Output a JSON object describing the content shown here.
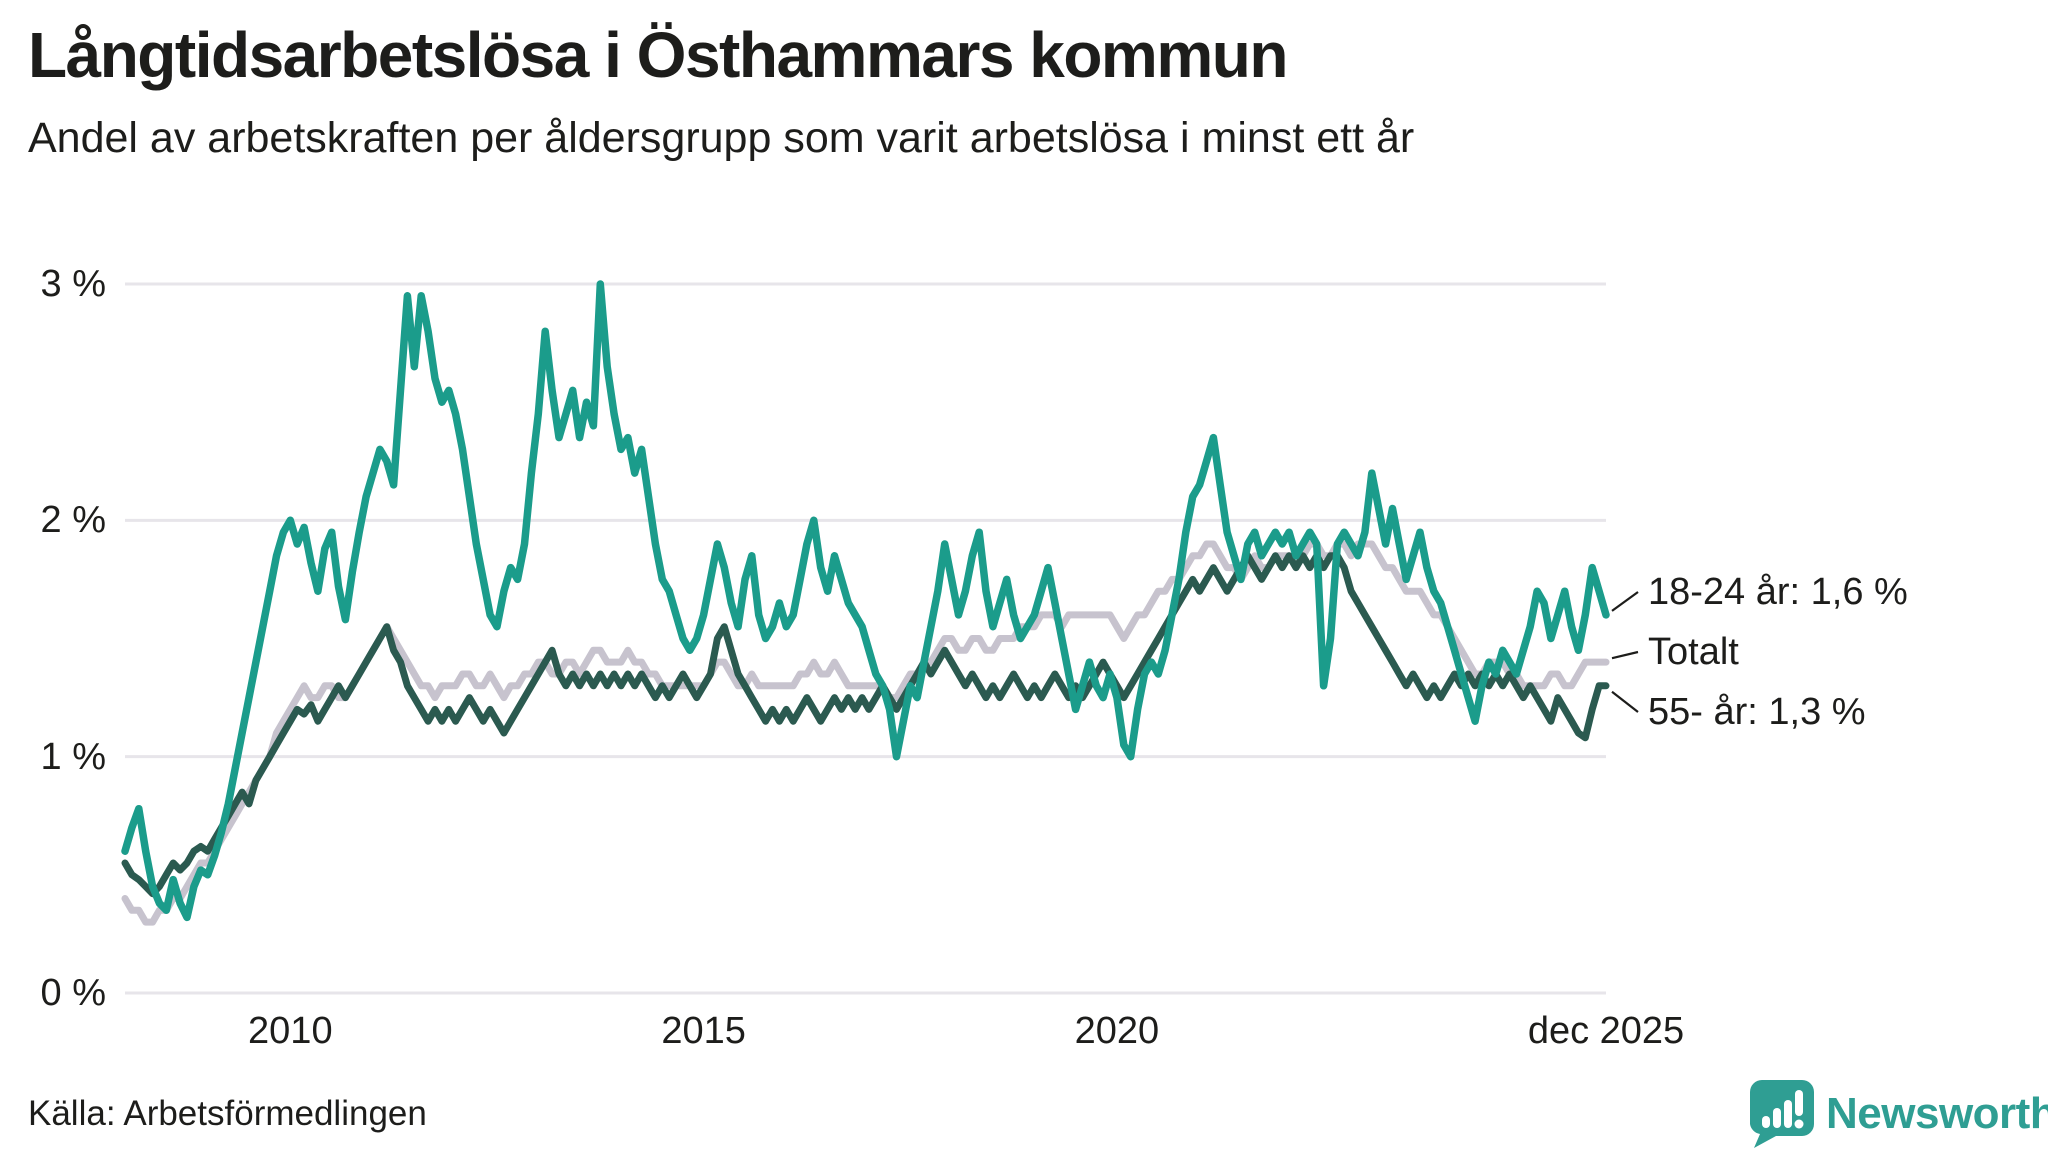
{
  "header": {
    "title": "Långtidsarbetslösa i Östhammars kommun",
    "subtitle": "Andel av arbetskraften per åldersgrupp som varit arbetslösa i minst ett år"
  },
  "footer": {
    "source": "Källa: Arbetsförmedlingen",
    "logo_text": "Newsworthy",
    "logo_color": "#2f9e93"
  },
  "colors": {
    "text": "#1d1d1b",
    "gridline": "#e7e5ea",
    "leader": "#1d1d1b"
  },
  "chart_data": {
    "type": "line",
    "title": "Långtidsarbetslösa i Östhammars kommun",
    "subtitle": "Andel av arbetskraften per åldersgrupp som varit arbetslösa i minst ett år",
    "xlabel": "",
    "ylabel": "",
    "x_range": [
      2008.0,
      2025.9167
    ],
    "ylim": [
      0,
      3
    ],
    "grid": "horizontal",
    "legend_position": "right-of-line-ends",
    "yticks": [
      {
        "value": 0,
        "label": "0 %"
      },
      {
        "value": 1,
        "label": "1 %"
      },
      {
        "value": 2,
        "label": "2 %"
      },
      {
        "value": 3,
        "label": "3 %"
      }
    ],
    "xticks": [
      {
        "value": 2010.0,
        "label": "2010"
      },
      {
        "value": 2015.0,
        "label": "2015"
      },
      {
        "value": 2020.0,
        "label": "2020"
      },
      {
        "value": 2025.9167,
        "label": "dec 2025"
      }
    ],
    "series": [
      {
        "name": "Totalt",
        "end_label": "Totalt",
        "end_value": 1.4,
        "color": "#c7c3ce",
        "start_year": 2008,
        "interval_months": 1,
        "values": [
          0.4,
          0.35,
          0.35,
          0.3,
          0.3,
          0.35,
          0.35,
          0.4,
          0.4,
          0.45,
          0.5,
          0.55,
          0.55,
          0.6,
          0.65,
          0.7,
          0.75,
          0.8,
          0.85,
          0.9,
          0.95,
          1.0,
          1.1,
          1.15,
          1.2,
          1.25,
          1.3,
          1.25,
          1.25,
          1.3,
          1.3,
          1.25,
          1.25,
          1.3,
          1.35,
          1.4,
          1.45,
          1.5,
          1.55,
          1.5,
          1.45,
          1.4,
          1.35,
          1.3,
          1.3,
          1.25,
          1.3,
          1.3,
          1.3,
          1.35,
          1.35,
          1.3,
          1.3,
          1.35,
          1.3,
          1.25,
          1.3,
          1.3,
          1.35,
          1.35,
          1.4,
          1.4,
          1.35,
          1.35,
          1.4,
          1.4,
          1.35,
          1.4,
          1.45,
          1.45,
          1.4,
          1.4,
          1.4,
          1.45,
          1.4,
          1.4,
          1.35,
          1.35,
          1.3,
          1.3,
          1.3,
          1.3,
          1.3,
          1.3,
          1.3,
          1.35,
          1.4,
          1.4,
          1.35,
          1.3,
          1.3,
          1.35,
          1.3,
          1.3,
          1.3,
          1.3,
          1.3,
          1.3,
          1.35,
          1.35,
          1.4,
          1.35,
          1.35,
          1.4,
          1.35,
          1.3,
          1.3,
          1.3,
          1.3,
          1.3,
          1.3,
          1.25,
          1.25,
          1.3,
          1.35,
          1.35,
          1.4,
          1.4,
          1.45,
          1.5,
          1.5,
          1.45,
          1.45,
          1.5,
          1.5,
          1.45,
          1.45,
          1.5,
          1.5,
          1.5,
          1.55,
          1.55,
          1.55,
          1.6,
          1.6,
          1.6,
          1.55,
          1.6,
          1.6,
          1.6,
          1.6,
          1.6,
          1.6,
          1.6,
          1.55,
          1.5,
          1.55,
          1.6,
          1.6,
          1.65,
          1.7,
          1.7,
          1.75,
          1.75,
          1.8,
          1.85,
          1.85,
          1.9,
          1.9,
          1.85,
          1.8,
          1.8,
          1.75,
          1.8,
          1.85,
          1.8,
          1.8,
          1.85,
          1.85,
          1.85,
          1.8,
          1.85,
          1.9,
          1.9,
          1.85,
          1.85,
          1.9,
          1.9,
          1.85,
          1.9,
          1.9,
          1.9,
          1.85,
          1.8,
          1.8,
          1.75,
          1.7,
          1.7,
          1.7,
          1.65,
          1.6,
          1.6,
          1.55,
          1.5,
          1.45,
          1.4,
          1.35,
          1.35,
          1.4,
          1.4,
          1.4,
          1.35,
          1.35,
          1.3,
          1.3,
          1.3,
          1.3,
          1.35,
          1.35,
          1.3,
          1.3,
          1.35,
          1.4,
          1.4,
          1.4,
          1.4
        ]
      },
      {
        "name": "55- år",
        "end_label": "55- år: 1,3 %",
        "end_value": 1.3,
        "color": "#2b5a50",
        "start_year": 2008,
        "interval_months": 1,
        "values": [
          0.55,
          0.5,
          0.48,
          0.45,
          0.42,
          0.45,
          0.5,
          0.55,
          0.52,
          0.55,
          0.6,
          0.62,
          0.6,
          0.65,
          0.7,
          0.75,
          0.8,
          0.85,
          0.8,
          0.9,
          0.95,
          1.0,
          1.05,
          1.1,
          1.15,
          1.2,
          1.18,
          1.22,
          1.15,
          1.2,
          1.25,
          1.3,
          1.25,
          1.3,
          1.35,
          1.4,
          1.45,
          1.5,
          1.55,
          1.45,
          1.4,
          1.3,
          1.25,
          1.2,
          1.15,
          1.2,
          1.15,
          1.2,
          1.15,
          1.2,
          1.25,
          1.2,
          1.15,
          1.2,
          1.15,
          1.1,
          1.15,
          1.2,
          1.25,
          1.3,
          1.35,
          1.4,
          1.45,
          1.35,
          1.3,
          1.35,
          1.3,
          1.35,
          1.3,
          1.35,
          1.3,
          1.35,
          1.3,
          1.35,
          1.3,
          1.35,
          1.3,
          1.25,
          1.3,
          1.25,
          1.3,
          1.35,
          1.3,
          1.25,
          1.3,
          1.35,
          1.5,
          1.55,
          1.45,
          1.35,
          1.3,
          1.25,
          1.2,
          1.15,
          1.2,
          1.15,
          1.2,
          1.15,
          1.2,
          1.25,
          1.2,
          1.15,
          1.2,
          1.25,
          1.2,
          1.25,
          1.2,
          1.25,
          1.2,
          1.25,
          1.3,
          1.25,
          1.2,
          1.25,
          1.3,
          1.35,
          1.4,
          1.35,
          1.4,
          1.45,
          1.4,
          1.35,
          1.3,
          1.35,
          1.3,
          1.25,
          1.3,
          1.25,
          1.3,
          1.35,
          1.3,
          1.25,
          1.3,
          1.25,
          1.3,
          1.35,
          1.3,
          1.25,
          1.3,
          1.25,
          1.3,
          1.35,
          1.4,
          1.35,
          1.3,
          1.25,
          1.3,
          1.35,
          1.4,
          1.45,
          1.5,
          1.55,
          1.6,
          1.65,
          1.7,
          1.75,
          1.7,
          1.75,
          1.8,
          1.75,
          1.7,
          1.75,
          1.8,
          1.85,
          1.8,
          1.75,
          1.8,
          1.85,
          1.8,
          1.85,
          1.8,
          1.85,
          1.8,
          1.85,
          1.8,
          1.85,
          1.85,
          1.8,
          1.7,
          1.65,
          1.6,
          1.55,
          1.5,
          1.45,
          1.4,
          1.35,
          1.3,
          1.35,
          1.3,
          1.25,
          1.3,
          1.25,
          1.3,
          1.35,
          1.3,
          1.35,
          1.3,
          1.35,
          1.3,
          1.35,
          1.3,
          1.35,
          1.3,
          1.25,
          1.3,
          1.25,
          1.2,
          1.15,
          1.25,
          1.2,
          1.15,
          1.1,
          1.08,
          1.2,
          1.3,
          1.3
        ]
      },
      {
        "name": "18-24 år",
        "end_label": "18-24 år: 1,6 %",
        "end_value": 1.6,
        "color": "#1b9c8b",
        "start_year": 2008,
        "interval_months": 1,
        "values": [
          0.6,
          0.7,
          0.78,
          0.6,
          0.45,
          0.38,
          0.35,
          0.48,
          0.38,
          0.32,
          0.45,
          0.52,
          0.5,
          0.58,
          0.68,
          0.8,
          0.95,
          1.1,
          1.25,
          1.4,
          1.55,
          1.7,
          1.85,
          1.95,
          2.0,
          1.9,
          1.97,
          1.82,
          1.7,
          1.88,
          1.95,
          1.72,
          1.58,
          1.78,
          1.95,
          2.1,
          2.2,
          2.3,
          2.25,
          2.15,
          2.55,
          2.95,
          2.65,
          2.95,
          2.8,
          2.6,
          2.5,
          2.55,
          2.45,
          2.3,
          2.1,
          1.9,
          1.75,
          1.6,
          1.55,
          1.7,
          1.8,
          1.75,
          1.9,
          2.2,
          2.45,
          2.8,
          2.55,
          2.35,
          2.45,
          2.55,
          2.35,
          2.5,
          2.4,
          3.0,
          2.65,
          2.45,
          2.3,
          2.35,
          2.2,
          2.3,
          2.1,
          1.9,
          1.75,
          1.7,
          1.6,
          1.5,
          1.45,
          1.5,
          1.6,
          1.75,
          1.9,
          1.8,
          1.65,
          1.55,
          1.75,
          1.85,
          1.6,
          1.5,
          1.55,
          1.65,
          1.55,
          1.6,
          1.75,
          1.9,
          2.0,
          1.8,
          1.7,
          1.85,
          1.75,
          1.65,
          1.6,
          1.55,
          1.45,
          1.35,
          1.3,
          1.2,
          1.0,
          1.15,
          1.3,
          1.25,
          1.4,
          1.55,
          1.7,
          1.9,
          1.75,
          1.6,
          1.7,
          1.85,
          1.95,
          1.7,
          1.55,
          1.65,
          1.75,
          1.6,
          1.5,
          1.55,
          1.6,
          1.7,
          1.8,
          1.65,
          1.5,
          1.35,
          1.2,
          1.3,
          1.4,
          1.3,
          1.25,
          1.35,
          1.25,
          1.05,
          1.0,
          1.2,
          1.35,
          1.4,
          1.35,
          1.45,
          1.6,
          1.75,
          1.95,
          2.1,
          2.15,
          2.25,
          2.35,
          2.15,
          1.95,
          1.85,
          1.75,
          1.9,
          1.95,
          1.85,
          1.9,
          1.95,
          1.9,
          1.95,
          1.85,
          1.9,
          1.95,
          1.9,
          1.3,
          1.5,
          1.9,
          1.95,
          1.9,
          1.85,
          1.95,
          2.2,
          2.05,
          1.9,
          2.05,
          1.9,
          1.75,
          1.85,
          1.95,
          1.8,
          1.7,
          1.65,
          1.55,
          1.45,
          1.35,
          1.25,
          1.15,
          1.3,
          1.4,
          1.35,
          1.45,
          1.4,
          1.35,
          1.45,
          1.55,
          1.7,
          1.65,
          1.5,
          1.6,
          1.7,
          1.55,
          1.45,
          1.6,
          1.8,
          1.7,
          1.6
        ]
      }
    ],
    "source": "Källa: Arbetsförmedlingen"
  }
}
